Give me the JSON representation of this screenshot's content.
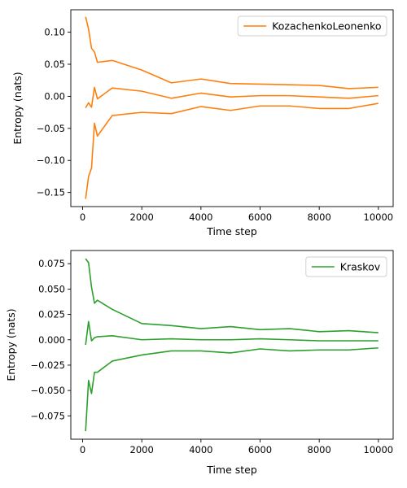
{
  "chart_data": [
    {
      "type": "line",
      "xlabel": "Time step",
      "ylabel": "Entropy (nats)",
      "xlim": [
        -400,
        10500
      ],
      "ylim": [
        -0.172,
        0.135
      ],
      "xticks": [
        0,
        2000,
        4000,
        6000,
        8000,
        10000
      ],
      "xtick_labels": [
        "0",
        "2000",
        "4000",
        "6000",
        "8000",
        "10000"
      ],
      "yticks": [
        -0.15,
        -0.1,
        -0.05,
        0.0,
        0.05,
        0.1
      ],
      "ytick_labels": [
        "−0.15",
        "−0.10",
        "−0.05",
        "0.00",
        "0.05",
        "0.10"
      ],
      "legend_position": "top-right",
      "color": "#ff7f0e",
      "legend_label": "KozachenkoLeonenko",
      "x": [
        100,
        200,
        300,
        400,
        500,
        1000,
        2000,
        3000,
        4000,
        5000,
        6000,
        7000,
        8000,
        9000,
        10000
      ],
      "series": [
        {
          "values": [
            0.124,
            0.105,
            0.075,
            0.069,
            0.053,
            0.056,
            0.041,
            0.021,
            0.027,
            0.02,
            0.019,
            0.018,
            0.017,
            0.012,
            0.014
          ]
        },
        {
          "values": [
            -0.018,
            -0.01,
            -0.017,
            0.014,
            -0.004,
            0.013,
            0.008,
            -0.003,
            0.005,
            -0.001,
            0.001,
            0.001,
            -0.001,
            -0.003,
            0.001
          ]
        },
        {
          "values": [
            -0.16,
            -0.125,
            -0.112,
            -0.042,
            -0.062,
            -0.03,
            -0.025,
            -0.027,
            -0.016,
            -0.022,
            -0.015,
            -0.015,
            -0.019,
            -0.019,
            -0.011
          ]
        }
      ]
    },
    {
      "type": "line",
      "xlabel": "Time step",
      "ylabel": "Entropy (nats)",
      "xlim": [
        -400,
        10500
      ],
      "ylim": [
        -0.098,
        0.088
      ],
      "xticks": [
        0,
        2000,
        4000,
        6000,
        8000,
        10000
      ],
      "xtick_labels": [
        "0",
        "2000",
        "4000",
        "6000",
        "8000",
        "10000"
      ],
      "yticks": [
        -0.075,
        -0.05,
        -0.025,
        0.0,
        0.025,
        0.05,
        0.075
      ],
      "ytick_labels": [
        "−0.075",
        "−0.050",
        "−0.025",
        "0.000",
        "0.025",
        "0.050",
        "0.075"
      ],
      "legend_position": "top-right",
      "color": "#2ca02c",
      "legend_label": "Kraskov",
      "x": [
        100,
        200,
        300,
        400,
        500,
        1000,
        2000,
        3000,
        4000,
        5000,
        6000,
        7000,
        8000,
        9000,
        10000
      ],
      "series": [
        {
          "values": [
            0.08,
            0.076,
            0.052,
            0.036,
            0.039,
            0.03,
            0.016,
            0.014,
            0.011,
            0.013,
            0.01,
            0.011,
            0.008,
            0.009,
            0.007
          ]
        },
        {
          "values": [
            -0.005,
            0.018,
            -0.001,
            0.002,
            0.003,
            0.004,
            0.0,
            0.001,
            0.0,
            0.0,
            0.001,
            0.0,
            -0.001,
            -0.001,
            -0.001
          ]
        },
        {
          "values": [
            -0.09,
            -0.04,
            -0.053,
            -0.032,
            -0.032,
            -0.021,
            -0.015,
            -0.011,
            -0.011,
            -0.013,
            -0.009,
            -0.011,
            -0.01,
            -0.01,
            -0.008
          ]
        }
      ]
    }
  ]
}
